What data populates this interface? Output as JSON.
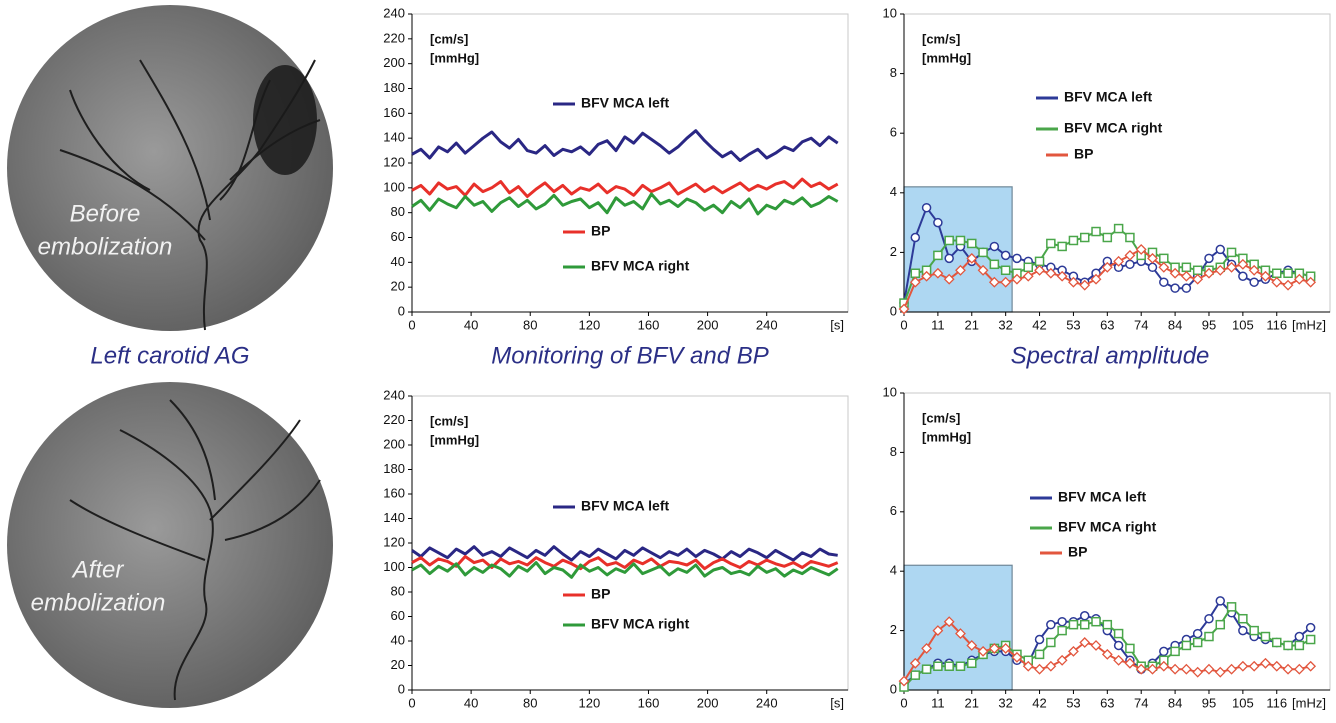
{
  "images": [
    {
      "label_lines": [
        "Before",
        "embolization"
      ]
    },
    {
      "label_lines": [
        "After",
        "embolization"
      ]
    }
  ],
  "captions": {
    "angiography": "Left carotid AG",
    "monitoring": "Monitoring of BFV and BP",
    "spectrum": "Spectral amplitude"
  },
  "chart_data": [
    {
      "type": "line",
      "xlim": [
        0,
        295
      ],
      "ylim": [
        0,
        240
      ],
      "xticks": [
        0,
        40,
        80,
        120,
        160,
        200,
        240
      ],
      "yticks": [
        0,
        20,
        40,
        60,
        80,
        100,
        120,
        140,
        160,
        180,
        200,
        220,
        240
      ],
      "x_unit": "[s]",
      "y_unit_lines": [
        "[cm/s]",
        "[mmHg]"
      ],
      "x": [
        0,
        6,
        12,
        18,
        24,
        30,
        36,
        42,
        48,
        54,
        60,
        66,
        72,
        78,
        84,
        90,
        96,
        102,
        108,
        114,
        120,
        126,
        132,
        138,
        144,
        150,
        156,
        162,
        168,
        174,
        180,
        186,
        192,
        198,
        204,
        210,
        216,
        222,
        228,
        234,
        240,
        246,
        252,
        258,
        264,
        270,
        276,
        282,
        288
      ],
      "series": [
        {
          "name": "BFV MCA left",
          "color": "#2a2784",
          "values": [
            127,
            131,
            124,
            133,
            129,
            136,
            128,
            134,
            140,
            145,
            137,
            132,
            139,
            130,
            128,
            134,
            126,
            131,
            129,
            133,
            127,
            135,
            138,
            130,
            141,
            136,
            144,
            139,
            134,
            128,
            133,
            140,
            146,
            138,
            131,
            125,
            129,
            122,
            127,
            131,
            124,
            128,
            133,
            130,
            137,
            140,
            134,
            141,
            136
          ]
        },
        {
          "name": "BP",
          "color": "#e8302a",
          "values": [
            98,
            102,
            95,
            104,
            99,
            101,
            94,
            103,
            97,
            100,
            105,
            96,
            101,
            93,
            99,
            104,
            97,
            102,
            95,
            100,
            98,
            103,
            96,
            101,
            99,
            94,
            102,
            97,
            100,
            104,
            95,
            99,
            103,
            97,
            101,
            96,
            100,
            104,
            98,
            102,
            99,
            103,
            105,
            100,
            107,
            101,
            104,
            99,
            103
          ]
        },
        {
          "name": "BFV MCA right",
          "color": "#2f9a3a",
          "values": [
            85,
            90,
            82,
            91,
            87,
            84,
            93,
            86,
            89,
            81,
            88,
            92,
            85,
            90,
            83,
            87,
            94,
            86,
            89,
            91,
            84,
            88,
            80,
            92,
            86,
            89,
            83,
            95,
            87,
            90,
            85,
            91,
            88,
            82,
            86,
            80,
            89,
            84,
            91,
            79,
            86,
            83,
            90,
            87,
            92,
            85,
            88,
            93,
            89
          ]
        }
      ]
    },
    {
      "type": "line",
      "xlim": [
        0,
        132
      ],
      "ylim": [
        0,
        10
      ],
      "xticks": [
        0,
        {
          "value": 10.5,
          "label": "11"
        },
        21,
        {
          "value": 31.5,
          "label": "32"
        },
        42,
        {
          "value": 52.5,
          "label": "53"
        },
        63,
        {
          "value": 73.5,
          "label": "74"
        },
        84,
        {
          "value": 94.5,
          "label": "95"
        },
        105,
        {
          "value": 115.5,
          "label": "116"
        }
      ],
      "yticks": [
        0,
        2,
        4,
        6,
        8,
        10
      ],
      "x_unit": "[mHz]",
      "y_unit_lines": [
        "[cm/s]",
        "[mmHg]"
      ],
      "band": {
        "xlim": [
          0,
          33.5
        ],
        "ylim": [
          0,
          4.2
        ]
      },
      "x": [
        0,
        3.5,
        7,
        10.5,
        14,
        17.5,
        21,
        24.5,
        28,
        31.5,
        35,
        38.5,
        42,
        45.5,
        49,
        52.5,
        56,
        59.5,
        63,
        66.5,
        70,
        73.5,
        77,
        80.5,
        84,
        87.5,
        91,
        94.5,
        98,
        101.5,
        105,
        108.5,
        112,
        115.5,
        119,
        122.5,
        126
      ],
      "series": [
        {
          "name": "BFV MCA left",
          "color": "#2d3a98",
          "marker": "circle",
          "values": [
            0.3,
            2.5,
            3.5,
            3.0,
            1.8,
            2.2,
            1.7,
            2.0,
            2.2,
            1.9,
            1.8,
            1.7,
            1.6,
            1.5,
            1.4,
            1.2,
            1.0,
            1.3,
            1.7,
            1.5,
            1.6,
            1.7,
            1.5,
            1.0,
            0.8,
            0.8,
            1.2,
            1.8,
            2.1,
            1.6,
            1.2,
            1.0,
            1.1,
            1.3,
            1.4,
            1.3,
            1.2
          ]
        },
        {
          "name": "BFV MCA right",
          "color": "#4aa64a",
          "marker": "square",
          "values": [
            0.3,
            1.3,
            1.4,
            1.9,
            2.4,
            2.4,
            2.3,
            2.0,
            1.6,
            1.4,
            1.3,
            1.5,
            1.7,
            2.3,
            2.2,
            2.4,
            2.5,
            2.7,
            2.5,
            2.8,
            2.5,
            1.9,
            2.0,
            1.8,
            1.5,
            1.5,
            1.4,
            1.4,
            1.5,
            2.0,
            1.8,
            1.6,
            1.4,
            1.3,
            1.3,
            1.3,
            1.2
          ]
        },
        {
          "name": "BP",
          "color": "#e2563e",
          "marker": "diamond",
          "values": [
            0.1,
            1.0,
            1.2,
            1.3,
            1.1,
            1.4,
            1.8,
            1.4,
            1.0,
            1.0,
            1.1,
            1.2,
            1.4,
            1.3,
            1.2,
            1.0,
            0.9,
            1.1,
            1.5,
            1.7,
            1.9,
            2.1,
            1.8,
            1.5,
            1.3,
            1.2,
            1.1,
            1.3,
            1.4,
            1.5,
            1.6,
            1.4,
            1.2,
            1.0,
            0.9,
            1.1,
            1.0
          ]
        }
      ]
    },
    {
      "type": "line",
      "xlim": [
        0,
        295
      ],
      "ylim": [
        0,
        240
      ],
      "xticks": [
        0,
        40,
        80,
        120,
        160,
        200,
        240
      ],
      "yticks": [
        0,
        20,
        40,
        60,
        80,
        100,
        120,
        140,
        160,
        180,
        200,
        220,
        240
      ],
      "x_unit": "[s]",
      "y_unit_lines": [
        "[cm/s]",
        "[mmHg]"
      ],
      "x": [
        0,
        6,
        12,
        18,
        24,
        30,
        36,
        42,
        48,
        54,
        60,
        66,
        72,
        78,
        84,
        90,
        96,
        102,
        108,
        114,
        120,
        126,
        132,
        138,
        144,
        150,
        156,
        162,
        168,
        174,
        180,
        186,
        192,
        198,
        204,
        210,
        216,
        222,
        228,
        234,
        240,
        246,
        252,
        258,
        264,
        270,
        276,
        282,
        288
      ],
      "series": [
        {
          "name": "BFV MCA left",
          "color": "#2a2784",
          "values": [
            114,
            109,
            116,
            112,
            108,
            115,
            111,
            117,
            110,
            113,
            109,
            116,
            112,
            108,
            114,
            110,
            117,
            111,
            106,
            113,
            109,
            115,
            111,
            107,
            114,
            110,
            116,
            112,
            108,
            113,
            110,
            115,
            109,
            114,
            111,
            107,
            113,
            109,
            115,
            112,
            108,
            114,
            110,
            106,
            112,
            109,
            115,
            111,
            110
          ]
        },
        {
          "name": "BP",
          "color": "#e8302a",
          "values": [
            104,
            108,
            102,
            107,
            105,
            101,
            109,
            104,
            106,
            100,
            107,
            103,
            105,
            102,
            108,
            104,
            101,
            106,
            103,
            99,
            105,
            108,
            102,
            104,
            100,
            106,
            103,
            107,
            101,
            105,
            104,
            102,
            106,
            99,
            104,
            107,
            103,
            100,
            105,
            102,
            106,
            103,
            101,
            104,
            100,
            105,
            103,
            101,
            104
          ]
        },
        {
          "name": "BFV MCA right",
          "color": "#2f9a3a",
          "values": [
            98,
            102,
            95,
            101,
            97,
            103,
            94,
            100,
            96,
            102,
            99,
            93,
            101,
            97,
            104,
            95,
            100,
            98,
            92,
            102,
            97,
            100,
            94,
            99,
            96,
            103,
            95,
            98,
            101,
            94,
            99,
            96,
            102,
            93,
            98,
            100,
            95,
            97,
            94,
            101,
            96,
            99,
            93,
            98,
            95,
            100,
            97,
            94,
            99
          ]
        }
      ]
    },
    {
      "type": "line",
      "xlim": [
        0,
        132
      ],
      "ylim": [
        0,
        10
      ],
      "xticks": [
        0,
        {
          "value": 10.5,
          "label": "11"
        },
        21,
        {
          "value": 31.5,
          "label": "32"
        },
        42,
        {
          "value": 52.5,
          "label": "53"
        },
        63,
        {
          "value": 73.5,
          "label": "74"
        },
        84,
        {
          "value": 94.5,
          "label": "95"
        },
        105,
        {
          "value": 115.5,
          "label": "116"
        }
      ],
      "yticks": [
        0,
        2,
        4,
        6,
        8,
        10
      ],
      "x_unit": "[mHz]",
      "y_unit_lines": [
        "[cm/s]",
        "[mmHg]"
      ],
      "band": {
        "xlim": [
          0,
          33.5
        ],
        "ylim": [
          0,
          4.2
        ]
      },
      "x": [
        0,
        3.5,
        7,
        10.5,
        14,
        17.5,
        21,
        24.5,
        28,
        31.5,
        35,
        38.5,
        42,
        45.5,
        49,
        52.5,
        56,
        59.5,
        63,
        66.5,
        70,
        73.5,
        77,
        80.5,
        84,
        87.5,
        91,
        94.5,
        98,
        101.5,
        105,
        108.5,
        112,
        115.5,
        119,
        122.5,
        126
      ],
      "series": [
        {
          "name": "BFV MCA left",
          "color": "#2d3a98",
          "marker": "circle",
          "values": [
            0.2,
            0.5,
            0.7,
            0.9,
            0.9,
            0.8,
            1.0,
            1.2,
            1.3,
            1.3,
            1.0,
            0.9,
            1.7,
            2.2,
            2.3,
            2.3,
            2.5,
            2.4,
            2.0,
            1.5,
            1.0,
            0.7,
            0.9,
            1.3,
            1.5,
            1.7,
            1.9,
            2.4,
            3.0,
            2.6,
            2.0,
            1.8,
            1.7,
            1.6,
            1.5,
            1.8,
            2.1
          ]
        },
        {
          "name": "BFV MCA right",
          "color": "#4aa64a",
          "marker": "square",
          "values": [
            0.1,
            0.5,
            0.7,
            0.8,
            0.8,
            0.8,
            0.9,
            1.2,
            1.4,
            1.5,
            1.2,
            1.0,
            1.2,
            1.6,
            2.0,
            2.2,
            2.2,
            2.3,
            2.2,
            1.9,
            1.4,
            0.8,
            0.8,
            1.0,
            1.3,
            1.5,
            1.6,
            1.8,
            2.2,
            2.8,
            2.4,
            2.0,
            1.8,
            1.6,
            1.5,
            1.5,
            1.7
          ]
        },
        {
          "name": "BP",
          "color": "#e2563e",
          "marker": "diamond",
          "values": [
            0.3,
            0.9,
            1.4,
            2.0,
            2.3,
            1.9,
            1.5,
            1.3,
            1.4,
            1.4,
            1.1,
            0.8,
            0.7,
            0.8,
            1.0,
            1.3,
            1.6,
            1.5,
            1.2,
            1.0,
            0.9,
            0.7,
            0.7,
            0.8,
            0.7,
            0.7,
            0.6,
            0.7,
            0.6,
            0.7,
            0.8,
            0.8,
            0.9,
            0.8,
            0.7,
            0.7,
            0.8
          ]
        }
      ]
    }
  ]
}
